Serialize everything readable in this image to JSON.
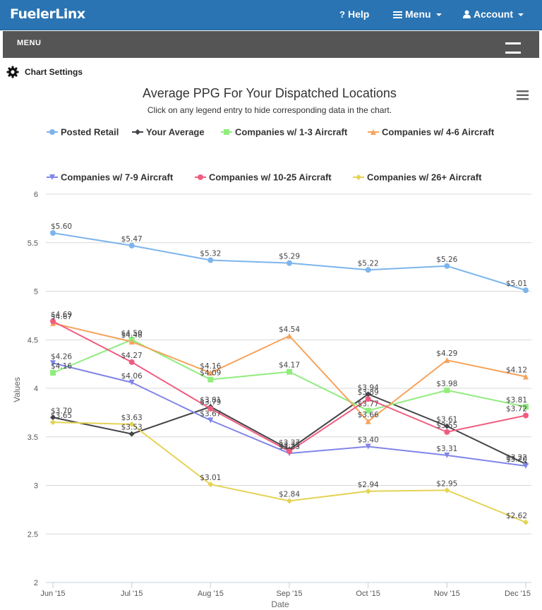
{
  "header": {
    "brand": "FuelerLinx",
    "help_label": "Help",
    "menu_label": "Menu",
    "account_label": "Account"
  },
  "menubar": {
    "label": "MENU"
  },
  "settings": {
    "label": "Chart Settings"
  },
  "colors": {
    "topbar": "#2a74b3",
    "menubar": "#555555"
  },
  "chart_data": {
    "type": "line",
    "title": "Average PPG For Your Dispatched Locations",
    "subtitle": "Click on any legend entry to hide corresponding data in the chart.",
    "xlabel": "Date",
    "ylabel": "Values",
    "categories": [
      "Jun '15",
      "Jul '15",
      "Aug '15",
      "Sep '15",
      "Oct '15",
      "Nov '15",
      "Dec '15"
    ],
    "ylim": [
      2,
      6
    ],
    "yticks": [
      2,
      2.5,
      3,
      3.5,
      4,
      4.5,
      5,
      5.5,
      6
    ],
    "grid": true,
    "legend_position": "top",
    "series": [
      {
        "name": "Posted Retail",
        "color": "#7cb5ec",
        "marker": "circle",
        "values": [
          5.6,
          5.47,
          5.32,
          5.29,
          5.22,
          5.26,
          5.01
        ],
        "labels": [
          "$5.60",
          "$5.47",
          "$5.32",
          "$5.29",
          "$5.22",
          "$5.26",
          "$5.01"
        ]
      },
      {
        "name": "Your Average",
        "color": "#434348",
        "marker": "diamond",
        "values": [
          3.7,
          3.53,
          3.81,
          3.37,
          3.94,
          3.61,
          3.22
        ],
        "labels": [
          "$3.70",
          "$3.53",
          "$3.81",
          "$3.37",
          "$3.94",
          "$3.61",
          "$3.22"
        ]
      },
      {
        "name": "Companies w/ 1-3 Aircraft",
        "color": "#90ed7d",
        "marker": "square",
        "values": [
          4.16,
          4.5,
          4.09,
          4.17,
          3.77,
          3.98,
          3.81
        ],
        "labels": [
          "$4.16",
          "$4.50",
          "$4.09",
          "$4.17",
          "$3.77",
          "$3.98",
          "$3.81"
        ]
      },
      {
        "name": "Companies w/ 4-6 Aircraft",
        "color": "#f7a35c",
        "marker": "triangle",
        "values": [
          4.67,
          4.48,
          4.16,
          4.54,
          3.66,
          4.29,
          4.12
        ],
        "labels": [
          "$4.67",
          "$4.48",
          "$4.16",
          "$4.54",
          "$3.66",
          "$4.29",
          "$4.12"
        ]
      },
      {
        "name": "Companies w/ 7-9 Aircraft",
        "color": "#8085e9",
        "marker": "triangle-down",
        "values": [
          4.26,
          4.06,
          3.67,
          3.33,
          3.4,
          3.31,
          3.2
        ],
        "labels": [
          "$4.26",
          "$4.06",
          "$3.67",
          "$3.33",
          "$3.40",
          "$3.31",
          "$3.20"
        ]
      },
      {
        "name": "Companies w/ 10-25 Aircraft",
        "color": "#f15c80",
        "marker": "circle",
        "values": [
          4.69,
          4.27,
          3.79,
          3.35,
          3.89,
          3.55,
          3.72
        ],
        "labels": [
          "$4.69",
          "$4.27",
          "$3.79",
          "$3.35",
          "$3.89",
          "$3.55",
          "$3.72"
        ]
      },
      {
        "name": "Companies w/ 26+ Aircraft",
        "color": "#e4d354",
        "marker": "diamond",
        "values": [
          3.65,
          3.63,
          3.01,
          2.84,
          2.94,
          2.95,
          2.62
        ],
        "labels": [
          "$3.65",
          "$3.63",
          "$3.01",
          "$2.84",
          "$2.94",
          "$2.95",
          "$2.62"
        ]
      }
    ]
  }
}
